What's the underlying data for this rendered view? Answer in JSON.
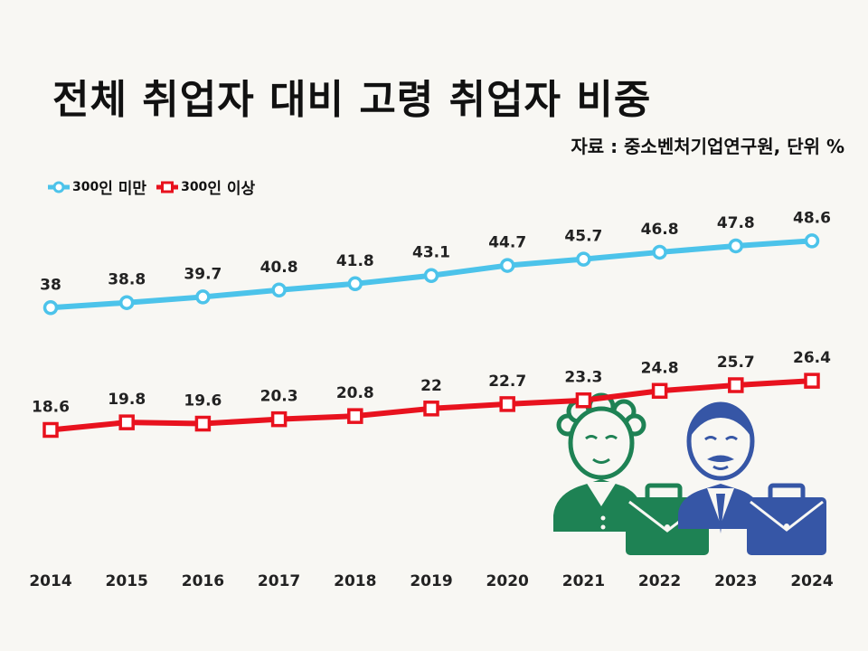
{
  "title": "전체 취업자 대비 고령 취업자 비중",
  "source": "자료 : 중소벤처기업연구원, 단위 %",
  "colors": {
    "series1": "#4cc3ea",
    "series2": "#e8121e",
    "illus_green": "#1e8254",
    "illus_blue": "#3656a6"
  },
  "illustration": {
    "icons": [
      "elderly-woman-icon",
      "green-briefcase-icon",
      "elderly-man-icon",
      "blue-briefcase-icon"
    ]
  },
  "chart_data": {
    "type": "line",
    "title": "전체 취업자 대비 고령 취업자 비중",
    "xlabel": "",
    "ylabel": "",
    "ylim": [
      0,
      60
    ],
    "grid": false,
    "legend": "top-left",
    "categories": [
      "2014",
      "2015",
      "2016",
      "2017",
      "2018",
      "2019",
      "2020",
      "2021",
      "2022",
      "2023",
      "2024"
    ],
    "series": [
      {
        "name": "300인 미만",
        "legend_num": "300",
        "legend_text": "인 미만",
        "values": [
          38,
          38.8,
          39.7,
          40.8,
          41.8,
          43.1,
          44.7,
          45.7,
          46.8,
          47.8,
          48.6
        ],
        "color": "#4cc3ea",
        "marker": "circle"
      },
      {
        "name": "300인 이상",
        "legend_num": "300",
        "legend_text": "인 이상",
        "values": [
          18.6,
          19.8,
          19.6,
          20.3,
          20.8,
          22,
          22.7,
          23.3,
          24.8,
          25.7,
          26.4
        ],
        "color": "#e8121e",
        "marker": "square"
      }
    ]
  }
}
